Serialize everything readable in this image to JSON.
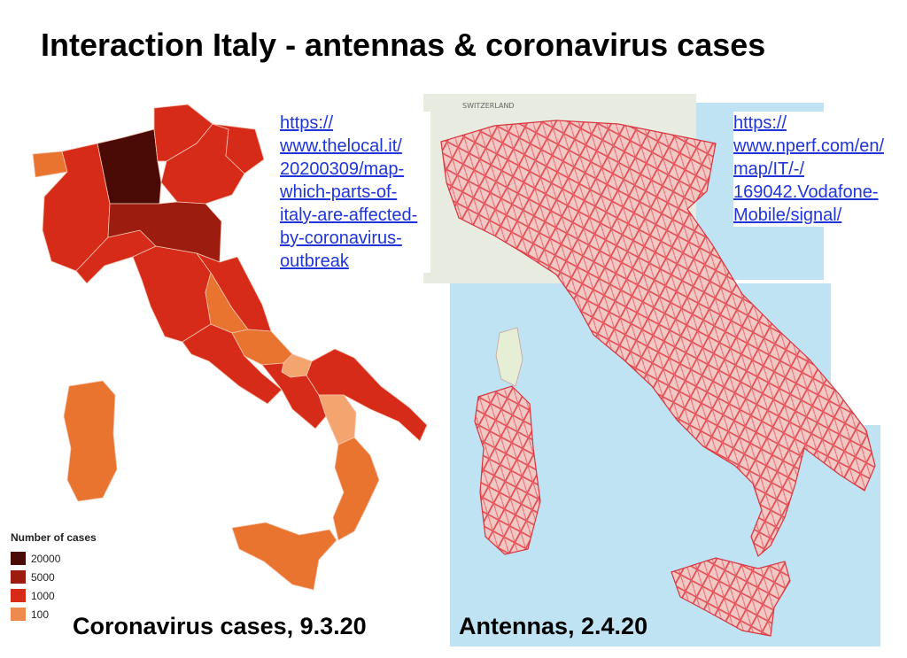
{
  "slide": {
    "title": "Interaction Italy - antennas & coronavirus cases",
    "captions": {
      "left": "Coronavirus cases, 9.3.20",
      "right": "Antennas, 2.4.20"
    },
    "links": {
      "left": [
        "https://",
        "www.thelocal.it/",
        "20200309/map-",
        "which-parts-of-",
        "italy-are-affected-",
        "by-coronavirus-",
        "outbreak"
      ],
      "right": [
        "https://",
        "www.nperf.com/en/",
        "map/IT/-/",
        "169042.Vodafone-",
        "Mobile/signal/"
      ]
    }
  },
  "legend": {
    "title": "Number of cases",
    "items": [
      {
        "label": "20000",
        "color": "#4a0a06"
      },
      {
        "label": "5000",
        "color": "#9c1c10"
      },
      {
        "label": "1000",
        "color": "#d72b1a"
      },
      {
        "label": "100",
        "color": "#ee8a4e"
      }
    ]
  },
  "map_colors": {
    "darkest": "#4a0a06",
    "dark": "#9c1c10",
    "medium": "#d72b1a",
    "light": "#e9742f",
    "lightest": "#f4a46f",
    "antenna_lines": "#e0424c",
    "sea": "#bfe3f2",
    "land": "#eef0e2"
  }
}
